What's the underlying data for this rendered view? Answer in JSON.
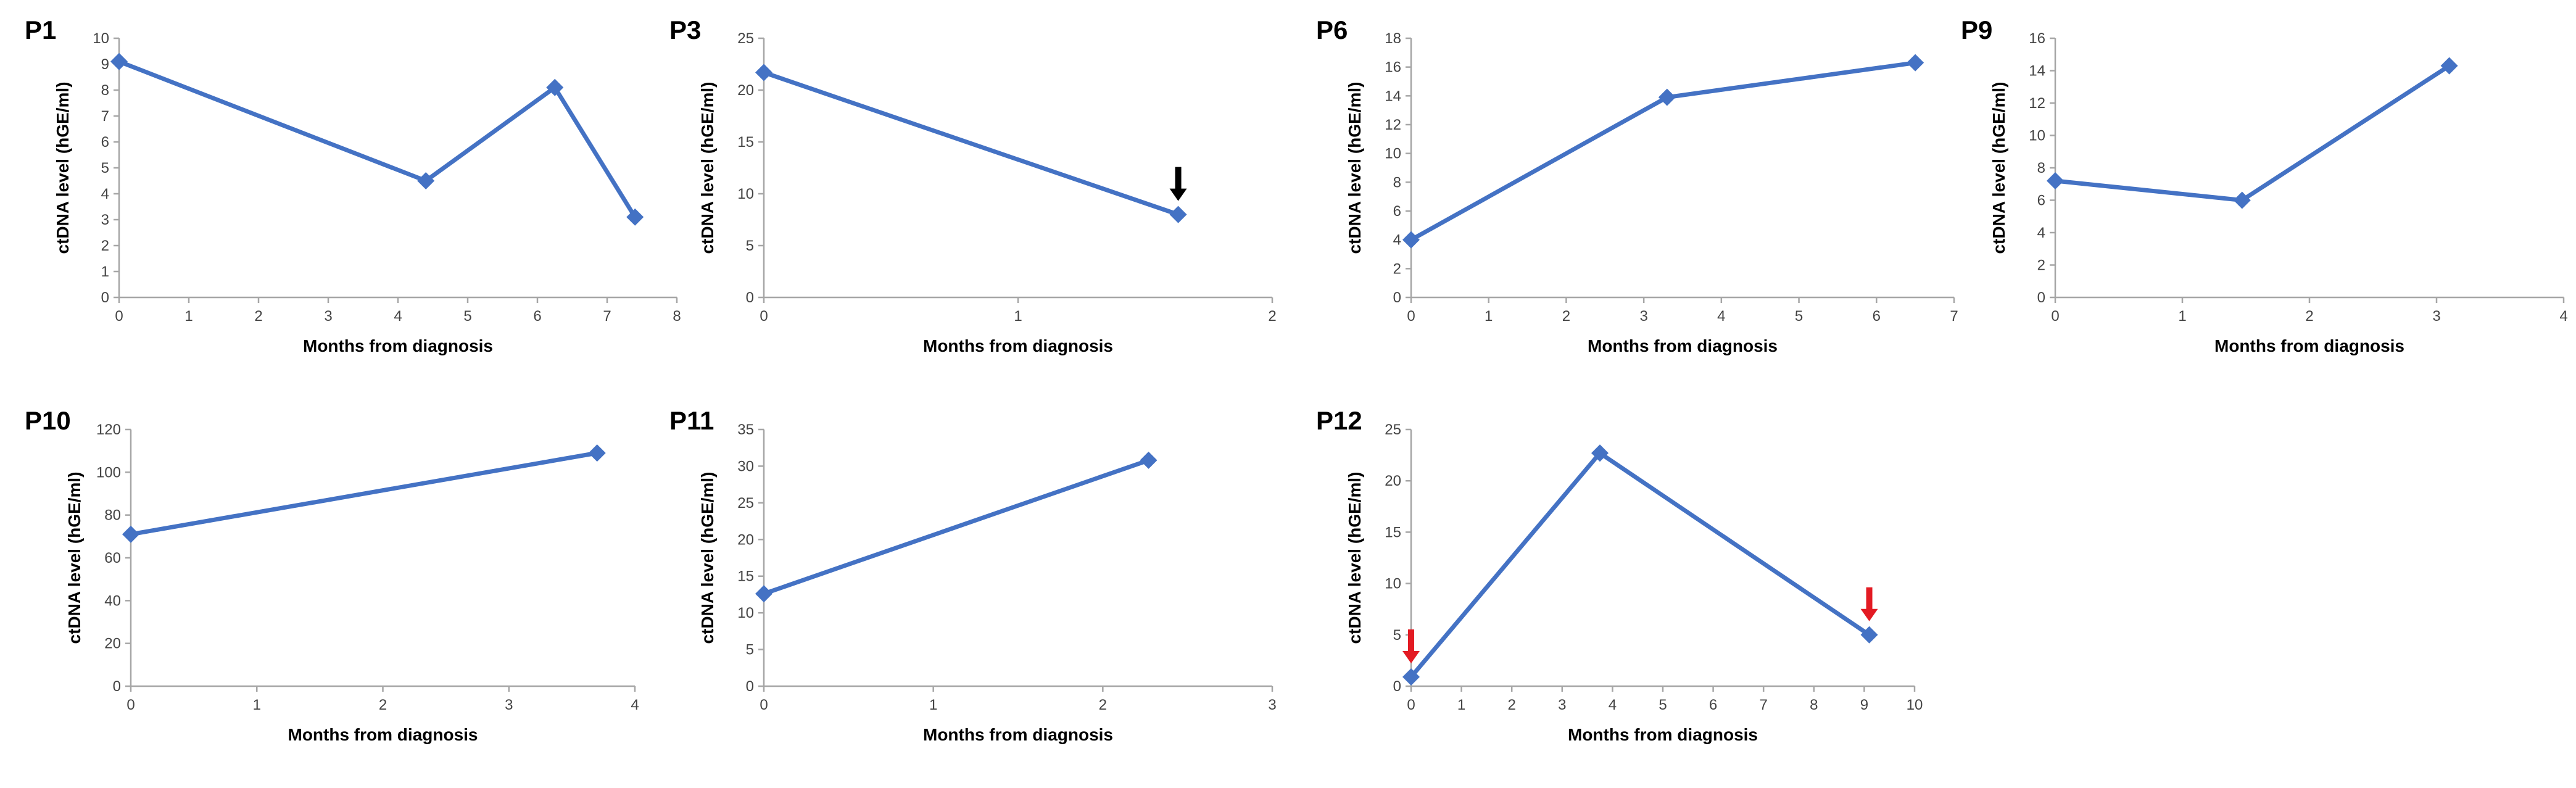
{
  "colors": {
    "series": "#4472c4",
    "black_arrow": "#000000",
    "red_arrow": "#e31b23",
    "axis": "#a6a6a6"
  },
  "chart_data": [
    {
      "type": "line",
      "panel": "P1",
      "xlabel": "Months from diagnosis",
      "ylabel": "ctDNA level (hGE/ml)",
      "xlim": [
        0,
        8
      ],
      "ylim": [
        0,
        10
      ],
      "xticks": [
        "0",
        "1",
        "2",
        "3",
        "4",
        "5",
        "6",
        "7",
        "8"
      ],
      "yticks": [
        "0",
        "1",
        "2",
        "3",
        "4",
        "5",
        "6",
        "7",
        "8",
        "9",
        "10"
      ],
      "x": [
        0,
        4.4,
        6.25,
        7.4
      ],
      "values": [
        9.1,
        4.5,
        8.1,
        3.1
      ],
      "arrows": []
    },
    {
      "type": "line",
      "panel": "P3",
      "xlabel": "Months from diagnosis",
      "ylabel": "ctDNA level (hGE/ml)",
      "xlim": [
        0,
        2
      ],
      "ylim": [
        0,
        25
      ],
      "xticks": [
        "0",
        "1",
        "2"
      ],
      "yticks": [
        "0",
        "5",
        "10",
        "15",
        "20",
        "25"
      ],
      "x": [
        0,
        1.63
      ],
      "values": [
        21.7,
        8.0
      ],
      "arrows": [
        {
          "point": 1,
          "color": "black_arrow"
        }
      ]
    },
    {
      "type": "line",
      "panel": "P6",
      "xlabel": "Months from diagnosis",
      "ylabel": "ctDNA level (hGE/ml)",
      "xlim": [
        0,
        7
      ],
      "ylim": [
        0,
        18
      ],
      "xticks": [
        "0",
        "1",
        "2",
        "3",
        "4",
        "5",
        "6",
        "7"
      ],
      "yticks": [
        "0",
        "2",
        "4",
        "6",
        "8",
        "10",
        "12",
        "14",
        "16",
        "18"
      ],
      "x": [
        0,
        3.3,
        6.5
      ],
      "values": [
        4.0,
        13.9,
        16.3
      ],
      "arrows": []
    },
    {
      "type": "line",
      "panel": "P9",
      "xlabel": "Months from diagnosis",
      "ylabel": "ctDNA level (hGE/ml)",
      "xlim": [
        0,
        4
      ],
      "ylim": [
        0,
        16
      ],
      "xticks": [
        "0",
        "1",
        "2",
        "3",
        "4"
      ],
      "yticks": [
        "0",
        "2",
        "4",
        "6",
        "8",
        "10",
        "12",
        "14",
        "16"
      ],
      "x": [
        0,
        1.47,
        3.1
      ],
      "values": [
        7.2,
        6.0,
        14.3
      ],
      "arrows": []
    },
    {
      "type": "line",
      "panel": "P10",
      "xlabel": "Months from diagnosis",
      "ylabel": "ctDNA level (hGE/ml)",
      "xlim": [
        0,
        4
      ],
      "ylim": [
        0,
        120
      ],
      "xticks": [
        "0",
        "1",
        "2",
        "3",
        "4"
      ],
      "yticks": [
        "0",
        "20",
        "40",
        "60",
        "80",
        "100",
        "120"
      ],
      "x": [
        0,
        3.7
      ],
      "values": [
        71,
        109
      ],
      "arrows": []
    },
    {
      "type": "line",
      "panel": "P11",
      "xlabel": "Months from diagnosis",
      "ylabel": "ctDNA level (hGE/ml)",
      "xlim": [
        0,
        3
      ],
      "ylim": [
        0,
        35
      ],
      "xticks": [
        "0",
        "1",
        "2",
        "3"
      ],
      "yticks": [
        "0",
        "5",
        "10",
        "15",
        "20",
        "25",
        "30",
        "35"
      ],
      "x": [
        0,
        2.27
      ],
      "values": [
        12.6,
        30.8
      ],
      "arrows": []
    },
    {
      "type": "line",
      "panel": "P12",
      "xlabel": "Months from diagnosis",
      "ylabel": "ctDNA level (hGE/ml)",
      "xlim": [
        0,
        10
      ],
      "ylim": [
        0,
        25
      ],
      "xticks": [
        "0",
        "1",
        "2",
        "3",
        "4",
        "5",
        "6",
        "7",
        "8",
        "9",
        "10"
      ],
      "yticks": [
        "0",
        "5",
        "10",
        "15",
        "20",
        "25"
      ],
      "x": [
        0,
        3.75,
        9.1
      ],
      "values": [
        0.9,
        22.7,
        5.0
      ],
      "arrows": [
        {
          "point": 0,
          "color": "red_arrow"
        },
        {
          "point": 2,
          "color": "red_arrow"
        }
      ]
    }
  ]
}
